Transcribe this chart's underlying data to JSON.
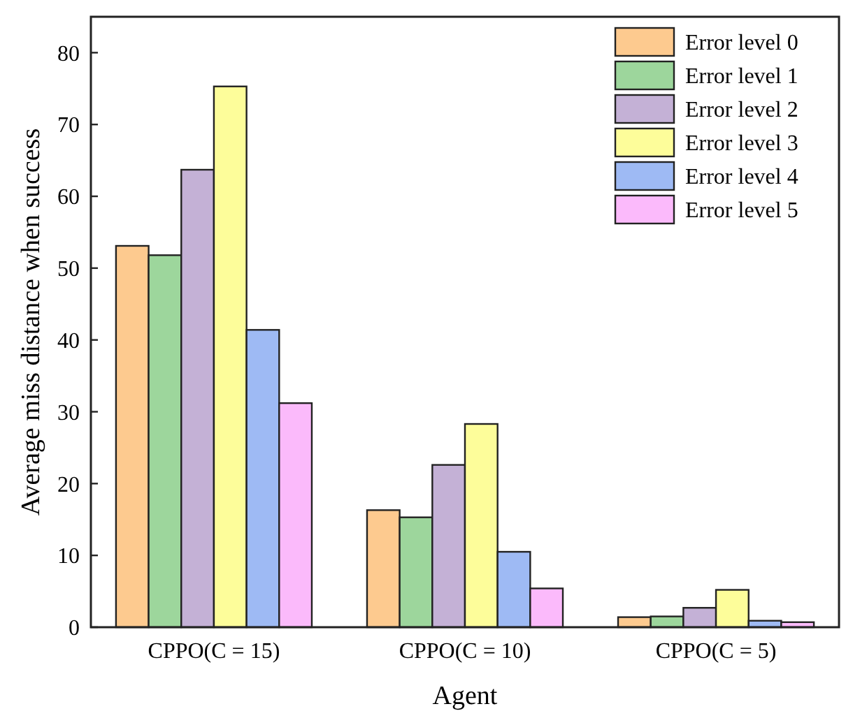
{
  "chart_data": {
    "type": "bar",
    "xlabel": "Agent",
    "ylabel": "Average miss distance when success",
    "categories": [
      "CPPO(C = 15)",
      "CPPO(C = 10)",
      "CPPO(C = 5)"
    ],
    "series": [
      {
        "name": "Error level 0",
        "color": "#fdca8f",
        "values": [
          53.1,
          16.3,
          1.4
        ]
      },
      {
        "name": "Error level 1",
        "color": "#9dd69c",
        "values": [
          51.8,
          15.3,
          1.5
        ]
      },
      {
        "name": "Error level 2",
        "color": "#c4b1d6",
        "values": [
          63.7,
          22.6,
          2.7
        ]
      },
      {
        "name": "Error level 3",
        "color": "#fdfd9a",
        "values": [
          75.3,
          28.3,
          5.2
        ]
      },
      {
        "name": "Error level 4",
        "color": "#9ebaf4",
        "values": [
          41.4,
          10.5,
          0.9
        ]
      },
      {
        "name": "Error level 5",
        "color": "#fbbafb",
        "values": [
          31.2,
          5.4,
          0.7
        ]
      }
    ],
    "ylim": [
      0,
      85
    ],
    "yticks": [
      0,
      10,
      20,
      30,
      40,
      50,
      60,
      70,
      80
    ],
    "grid": false,
    "legend": "top right"
  }
}
